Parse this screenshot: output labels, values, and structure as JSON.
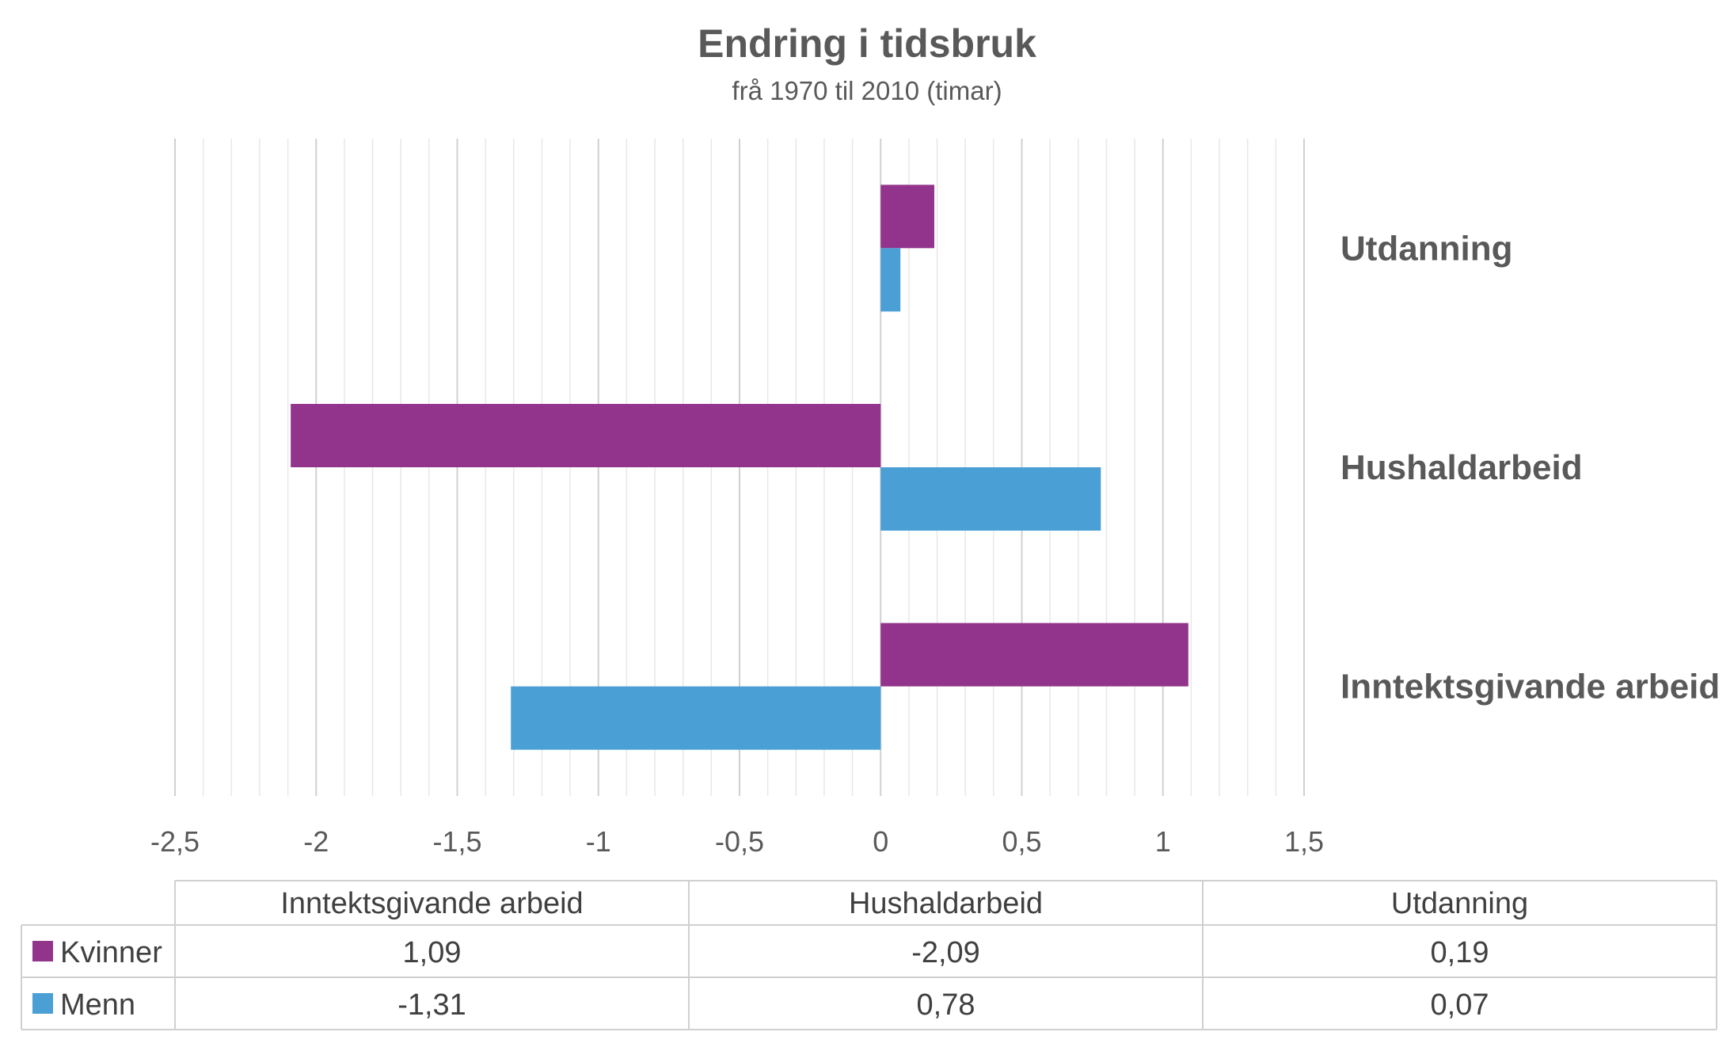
{
  "chart_data": {
    "type": "bar",
    "orientation": "horizontal",
    "title": "Endring i tidsbruk",
    "subtitle": "frå 1970 til 2010 (timar)",
    "categories": [
      "Inntektsgivande arbeid",
      "Hushaldarbeid",
      "Utdanning"
    ],
    "series": [
      {
        "name": "Kvinner",
        "color": "#93348c",
        "values": [
          1.09,
          -2.09,
          0.19
        ],
        "labels": [
          "1,09",
          "-2,09",
          "0,19"
        ]
      },
      {
        "name": "Menn",
        "color": "#4a9fd4",
        "values": [
          -1.31,
          0.78,
          0.07
        ],
        "labels": [
          "-1,31",
          "0,78",
          "0,07"
        ]
      }
    ],
    "xlim": [
      -2.5,
      1.5
    ],
    "x_ticks": [
      -2.5,
      -2,
      -1.5,
      -1,
      -0.5,
      0,
      0.5,
      1,
      1.5
    ],
    "x_tick_labels": [
      "-2,5",
      "-2",
      "-1,5",
      "-1",
      "-0,5",
      "0",
      "0,5",
      "1",
      "1,5"
    ],
    "grid": true,
    "data_table": true
  }
}
